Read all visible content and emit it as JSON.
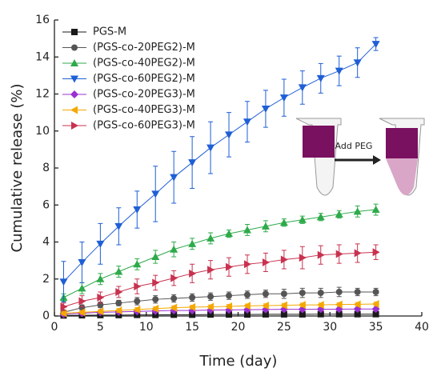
{
  "chart_data": {
    "type": "line",
    "xlabel": "Time (day)",
    "ylabel": "Cumulative release (%)",
    "inset_label": "Add PEG",
    "x": [
      1,
      3,
      5,
      7,
      9,
      11,
      13,
      15,
      17,
      19,
      21,
      23,
      25,
      27,
      29,
      31,
      33,
      35
    ],
    "xlim": [
      0,
      40
    ],
    "xticks": [
      0,
      5,
      10,
      15,
      20,
      25,
      30,
      35,
      40
    ],
    "ylim": [
      0,
      16
    ],
    "yticks": [
      0,
      2,
      4,
      6,
      8,
      10,
      12,
      14,
      16
    ],
    "grid": false,
    "legend": "upper left",
    "series": [
      {
        "name": "PGS-M",
        "color": "#1a1a1a",
        "marker": "square",
        "values": [
          0.03,
          0.04,
          0.05,
          0.05,
          0.06,
          0.06,
          0.07,
          0.07,
          0.08,
          0.08,
          0.08,
          0.09,
          0.09,
          0.09,
          0.1,
          0.1,
          0.1,
          0.1
        ],
        "errors": [
          0.02,
          0.02,
          0.02,
          0.02,
          0.02,
          0.02,
          0.02,
          0.02,
          0.02,
          0.02,
          0.02,
          0.02,
          0.02,
          0.02,
          0.02,
          0.02,
          0.02,
          0.02
        ]
      },
      {
        "name": "(PGS-co-20PEG2)-M",
        "color": "#555555",
        "marker": "circle",
        "values": [
          0.2,
          0.45,
          0.6,
          0.7,
          0.8,
          0.9,
          0.95,
          1.0,
          1.05,
          1.1,
          1.15,
          1.2,
          1.2,
          1.25,
          1.25,
          1.3,
          1.3,
          1.3
        ],
        "errors": [
          0.1,
          0.15,
          0.15,
          0.15,
          0.2,
          0.2,
          0.2,
          0.2,
          0.2,
          0.2,
          0.2,
          0.2,
          0.25,
          0.25,
          0.25,
          0.25,
          0.2,
          0.2
        ]
      },
      {
        "name": "(PGS-co-40PEG2)-M",
        "color": "#2eaa4a",
        "marker": "triangle-up",
        "values": [
          1.0,
          1.5,
          2.0,
          2.4,
          2.8,
          3.2,
          3.6,
          3.9,
          4.2,
          4.45,
          4.65,
          4.85,
          5.05,
          5.2,
          5.35,
          5.5,
          5.65,
          5.75
        ],
        "errors": [
          0.2,
          0.3,
          0.3,
          0.3,
          0.3,
          0.35,
          0.4,
          0.3,
          0.3,
          0.2,
          0.3,
          0.3,
          0.2,
          0.2,
          0.2,
          0.2,
          0.3,
          0.3
        ]
      },
      {
        "name": "(PGS-co-60PEG2)-M",
        "color": "#1f5fd6",
        "marker": "triangle-down",
        "values": [
          1.85,
          2.9,
          3.9,
          4.85,
          5.75,
          6.6,
          7.5,
          8.3,
          9.1,
          9.8,
          10.5,
          11.2,
          11.8,
          12.35,
          12.85,
          13.25,
          13.7,
          14.7
        ],
        "errors": [
          1.1,
          1.1,
          1.1,
          1.0,
          1.0,
          1.5,
          1.4,
          1.4,
          1.4,
          1.2,
          1.1,
          1.0,
          1.0,
          0.9,
          0.8,
          0.8,
          0.8,
          0.35
        ]
      },
      {
        "name": "(PGS-co-20PEG3)-M",
        "color": "#9b30d0",
        "marker": "diamond",
        "values": [
          0.1,
          0.15,
          0.2,
          0.22,
          0.25,
          0.27,
          0.3,
          0.3,
          0.32,
          0.33,
          0.34,
          0.35,
          0.36,
          0.36,
          0.37,
          0.37,
          0.38,
          0.38
        ],
        "errors": [
          0.05,
          0.05,
          0.05,
          0.05,
          0.05,
          0.05,
          0.05,
          0.05,
          0.05,
          0.05,
          0.05,
          0.05,
          0.05,
          0.05,
          0.05,
          0.05,
          0.05,
          0.05
        ]
      },
      {
        "name": "(PGS-co-40PEG3)-M",
        "color": "#f5a800",
        "marker": "triangle-left",
        "values": [
          0.15,
          0.2,
          0.25,
          0.3,
          0.35,
          0.4,
          0.45,
          0.48,
          0.5,
          0.52,
          0.55,
          0.56,
          0.58,
          0.6,
          0.6,
          0.62,
          0.63,
          0.65
        ],
        "errors": [
          0.1,
          0.1,
          0.1,
          0.1,
          0.1,
          0.1,
          0.1,
          0.1,
          0.1,
          0.1,
          0.1,
          0.1,
          0.1,
          0.1,
          0.1,
          0.1,
          0.1,
          0.1
        ]
      },
      {
        "name": "(PGS-co-60PEG3)-M",
        "color": "#c8324f",
        "marker": "triangle-right",
        "values": [
          0.5,
          0.8,
          1.0,
          1.3,
          1.6,
          1.8,
          2.05,
          2.3,
          2.5,
          2.65,
          2.8,
          2.9,
          3.05,
          3.15,
          3.3,
          3.35,
          3.4,
          3.45
        ],
        "errors": [
          0.2,
          0.3,
          0.3,
          0.3,
          0.4,
          0.4,
          0.4,
          0.5,
          0.5,
          0.5,
          0.5,
          0.5,
          0.5,
          0.6,
          0.5,
          0.5,
          0.5,
          0.4
        ]
      }
    ]
  }
}
